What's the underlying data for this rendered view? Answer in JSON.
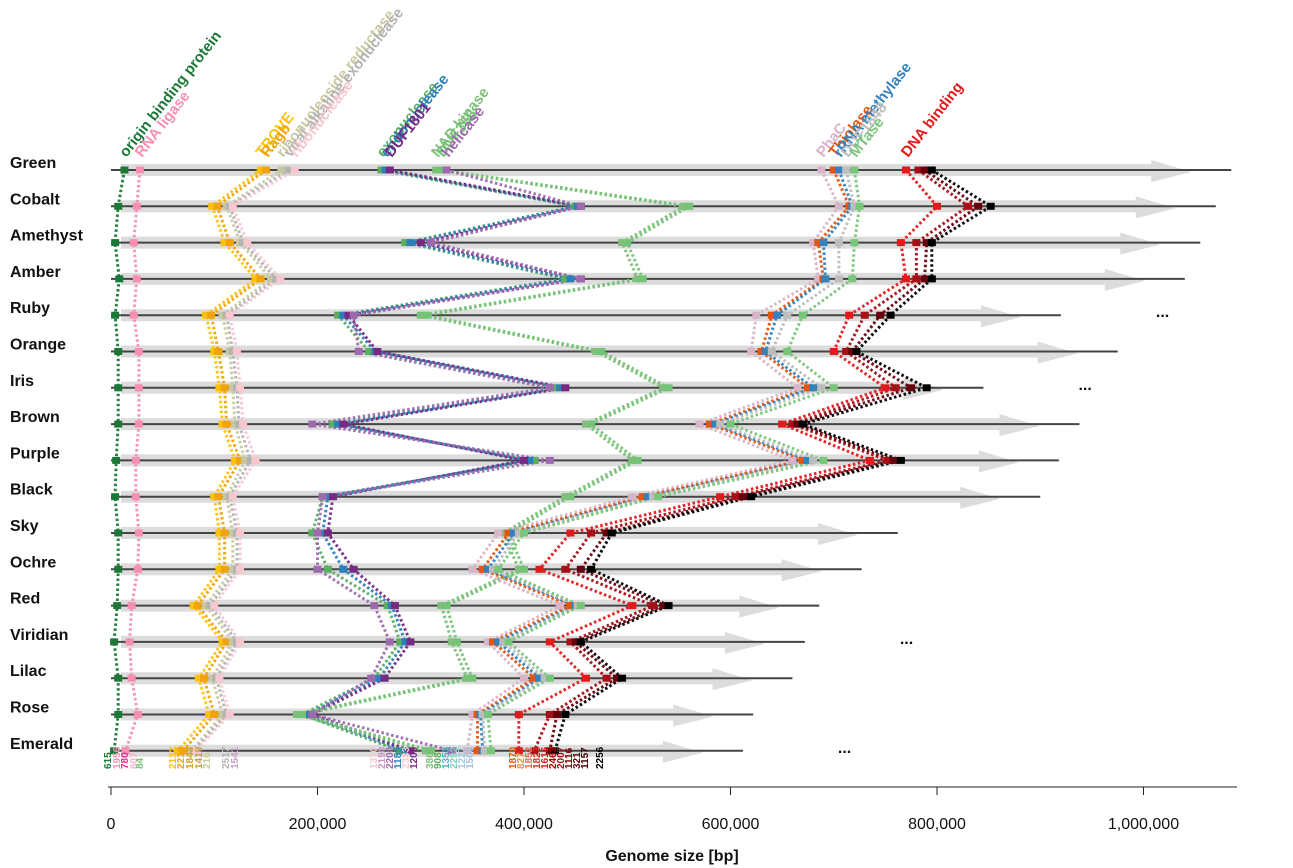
{
  "chart_data": {
    "type": "scatter",
    "title": "",
    "xlabel": "Genome size [bp]",
    "ylabel": "",
    "xlim": [
      0,
      1150000
    ],
    "xticks": [
      0,
      200000,
      400000,
      600000,
      800000,
      1000000
    ],
    "xtick_labels": [
      "0",
      "200,000",
      "400,000",
      "600,000",
      "800,000",
      "1,000,000"
    ],
    "grid": false,
    "legend": "none",
    "genomes": [
      {
        "name": "Green",
        "size": 1085000,
        "truncated": false
      },
      {
        "name": "Cobalt",
        "size": 1070000,
        "truncated": false
      },
      {
        "name": "Amethyst",
        "size": 1055000,
        "truncated": false
      },
      {
        "name": "Amber",
        "size": 1040000,
        "truncated": false
      },
      {
        "name": "Ruby",
        "size": 920000,
        "truncated": true
      },
      {
        "name": "Orange",
        "size": 975000,
        "truncated": false
      },
      {
        "name": "Iris",
        "size": 845000,
        "truncated": true
      },
      {
        "name": "Brown",
        "size": 938000,
        "truncated": false
      },
      {
        "name": "Purple",
        "size": 918000,
        "truncated": false
      },
      {
        "name": "Black",
        "size": 900000,
        "truncated": false
      },
      {
        "name": "Sky",
        "size": 762000,
        "truncated": false
      },
      {
        "name": "Ochre",
        "size": 727000,
        "truncated": false
      },
      {
        "name": "Red",
        "size": 686000,
        "truncated": false
      },
      {
        "name": "Viridian",
        "size": 672000,
        "truncated": true
      },
      {
        "name": "Lilac",
        "size": 660000,
        "truncated": false
      },
      {
        "name": "Rose",
        "size": 622000,
        "truncated": false
      },
      {
        "name": "Emerald",
        "size": 612000,
        "truncated": true
      }
    ],
    "functions": [
      {
        "label": "origin binding protein",
        "color": "#1b7837",
        "positions": [
          13000,
          7000,
          4000,
          8000,
          4000,
          7000,
          7000,
          7000,
          5000,
          4000,
          7000,
          7000,
          6000,
          3000,
          7000,
          7000,
          3000
        ]
      },
      {
        "label": "RNA ligase",
        "color": "#f78fb3",
        "positions": [
          28000,
          25000,
          22000,
          25000,
          22000,
          27000,
          27000,
          27000,
          24000,
          24000,
          27000,
          26000,
          20000,
          18000,
          20000,
          26000,
          14000
        ]
      },
      {
        "label": "TROVE",
        "color": "#ffc20a",
        "positions": [
          145000,
          98000,
          110000,
          140000,
          92000,
          100000,
          105000,
          108000,
          120000,
          100000,
          105000,
          105000,
          80000,
          108000,
          85000,
          95000,
          65000
        ]
      },
      {
        "label": "Ragb",
        "color": "#f0a30a",
        "positions": [
          150000,
          103000,
          115000,
          145000,
          97000,
          104000,
          110000,
          112000,
          125000,
          104000,
          110000,
          110000,
          84000,
          112000,
          90000,
          100000,
          70000
        ]
      },
      {
        "label": "ribonucleoside reductase",
        "color": "#c8c8a0",
        "positions": [
          165000,
          112000,
          125000,
          155000,
          108000,
          115000,
          118000,
          120000,
          130000,
          112000,
          118000,
          118000,
          92000,
          118000,
          98000,
          108000,
          78000
        ]
      },
      {
        "label": "viral alkaline exonuclease",
        "color": "#b3b3b3",
        "positions": [
          172000,
          115000,
          128000,
          160000,
          112000,
          118000,
          122000,
          124000,
          135000,
          115000,
          122000,
          122000,
          96000,
          122000,
          102000,
          112000,
          80000
        ]
      },
      {
        "label": "ribonuclease",
        "color": "#f7c6cf",
        "positions": [
          178000,
          118000,
          132000,
          164000,
          115000,
          122000,
          125000,
          128000,
          140000,
          118000,
          125000,
          125000,
          100000,
          125000,
          105000,
          115000,
          82000
        ]
      },
      {
        "label": "exonuclease",
        "color": "#5aae61",
        "positions": [
          262000,
          450000,
          285000,
          440000,
          220000,
          250000,
          430000,
          215000,
          410000,
          205000,
          195000,
          210000,
          268000,
          280000,
          255000,
          185000,
          280000
        ]
      },
      {
        "label": "endonuclease",
        "color": "#2c7fb8",
        "positions": [
          266000,
          452000,
          290000,
          445000,
          225000,
          256000,
          435000,
          220000,
          405000,
          210000,
          205000,
          225000,
          272000,
          285000,
          260000,
          190000,
          285000
        ]
      },
      {
        "label": "DUF1801",
        "color": "#762a83",
        "positions": [
          270000,
          455000,
          300000,
          455000,
          230000,
          258000,
          440000,
          225000,
          400000,
          215000,
          210000,
          235000,
          275000,
          290000,
          265000,
          195000,
          290000
        ]
      },
      {
        "label": "NAD kinase",
        "color": "#7fbf7b",
        "positions": [
          315000,
          555000,
          495000,
          510000,
          300000,
          470000,
          535000,
          460000,
          505000,
          440000,
          380000,
          395000,
          320000,
          330000,
          345000,
          180000,
          305000
        ]
      },
      {
        "label": "DUF356",
        "color": "#74c476",
        "positions": [
          320000,
          560000,
          500000,
          515000,
          305000,
          475000,
          540000,
          465000,
          510000,
          445000,
          385000,
          400000,
          325000,
          335000,
          350000,
          185000,
          310000
        ]
      },
      {
        "label": "helicase",
        "color": "#9e6aaf",
        "positions": [
          325000,
          455000,
          310000,
          455000,
          235000,
          240000,
          425000,
          195000,
          425000,
          205000,
          200000,
          200000,
          255000,
          270000,
          252000,
          195000,
          330000
        ]
      },
      {
        "label": "PhaC",
        "color": "#d9b3c8",
        "positions": [
          688000,
          705000,
          680000,
          685000,
          625000,
          620000,
          665000,
          570000,
          660000,
          505000,
          375000,
          350000,
          435000,
          365000,
          400000,
          350000,
          345000
        ]
      },
      {
        "label": "Thiolase",
        "color": "#e6550d",
        "positions": [
          700000,
          715000,
          685000,
          690000,
          640000,
          630000,
          675000,
          580000,
          670000,
          515000,
          385000,
          360000,
          445000,
          370000,
          410000,
          355000,
          355000
        ]
      },
      {
        "label": "rRNA methylase",
        "color": "#3182bd",
        "positions": [
          705000,
          718000,
          690000,
          692000,
          645000,
          634000,
          680000,
          585000,
          675000,
          520000,
          390000,
          365000,
          450000,
          375000,
          415000,
          358000,
          360000
        ]
      },
      {
        "label": "DUF1848",
        "color": "#bdbdbd",
        "positions": [
          712000,
          720000,
          705000,
          705000,
          655000,
          640000,
          688000,
          590000,
          680000,
          525000,
          395000,
          370000,
          452000,
          380000,
          420000,
          360000,
          362000
        ]
      },
      {
        "label": "MTase",
        "color": "#78c679",
        "positions": [
          720000,
          725000,
          720000,
          718000,
          670000,
          655000,
          700000,
          600000,
          690000,
          530000,
          400000,
          375000,
          455000,
          385000,
          425000,
          365000,
          368000
        ]
      },
      {
        "label": "DNA binding",
        "color": "#e31a1c",
        "positions": [
          770000,
          800000,
          765000,
          770000,
          715000,
          700000,
          750000,
          650000,
          735000,
          590000,
          445000,
          415000,
          505000,
          425000,
          460000,
          395000,
          395000
        ]
      },
      {
        "label": "",
        "color": "#a50f15",
        "positions": [
          782000,
          830000,
          780000,
          780000,
          730000,
          712000,
          760000,
          660000,
          752000,
          605000,
          465000,
          440000,
          525000,
          445000,
          480000,
          425000,
          410000
        ]
      },
      {
        "label": "",
        "color": "#67000d",
        "positions": [
          788000,
          840000,
          790000,
          788000,
          745000,
          718000,
          775000,
          665000,
          758000,
          612000,
          480000,
          455000,
          535000,
          450000,
          490000,
          432000,
          425000
        ]
      },
      {
        "label": "",
        "color": "#000000",
        "positions": [
          795000,
          852000,
          795000,
          795000,
          755000,
          722000,
          790000,
          670000,
          765000,
          620000,
          485000,
          465000,
          540000,
          455000,
          495000,
          440000,
          430000
        ]
      }
    ],
    "cluster_ids": [
      {
        "text": "615",
        "color": "#1b7837"
      },
      {
        "text": "1956",
        "color": "#f78fb3"
      },
      {
        "text": "780",
        "color": "#e7298a"
      },
      {
        "text": "607",
        "color": "#fbb4c9"
      },
      {
        "text": "84",
        "color": "#78c679"
      },
      {
        "text": "2132",
        "color": "#ffc20a"
      },
      {
        "text": "2213",
        "color": "#f0a30a"
      },
      {
        "text": "1843",
        "color": "#d4a017"
      },
      {
        "text": "1419",
        "color": "#bfa040"
      },
      {
        "text": "216",
        "color": "#c8c8a0"
      },
      {
        "text": "2517",
        "color": "#b3b3b3"
      },
      {
        "text": "1541",
        "color": "#c7a0c7"
      },
      {
        "text": "1370",
        "color": "#f7c6cf"
      },
      {
        "text": "2190",
        "color": "#c994c7"
      },
      {
        "text": "2200",
        "color": "#9e6aaf"
      },
      {
        "text": "1189",
        "color": "#2c7fb8"
      },
      {
        "text": "2333",
        "color": "#f7c6cf"
      },
      {
        "text": "1209",
        "color": "#762a83"
      },
      {
        "text": "386",
        "color": "#7fbf7b"
      },
      {
        "text": "908",
        "color": "#5aae61"
      },
      {
        "text": "1353",
        "color": "#41b6c4"
      },
      {
        "text": "2292",
        "color": "#7fcdbb"
      },
      {
        "text": "1227",
        "color": "#9ecae1"
      },
      {
        "text": "1503",
        "color": "#a6bddb"
      },
      {
        "text": "1870",
        "color": "#e6550d"
      },
      {
        "text": "827",
        "color": "#fd8d3c"
      },
      {
        "text": "1852",
        "color": "#ef6548"
      },
      {
        "text": "1823",
        "color": "#d7301f"
      },
      {
        "text": "1616",
        "color": "#e31a1c"
      },
      {
        "text": "2463",
        "color": "#b30000"
      },
      {
        "text": "2007",
        "color": "#a50f15"
      },
      {
        "text": "1116",
        "color": "#7f0000"
      },
      {
        "text": "321",
        "color": "#67000d"
      },
      {
        "text": "1157",
        "color": "#3d0000"
      },
      {
        "text": "2256",
        "color": "#000000"
      }
    ]
  }
}
